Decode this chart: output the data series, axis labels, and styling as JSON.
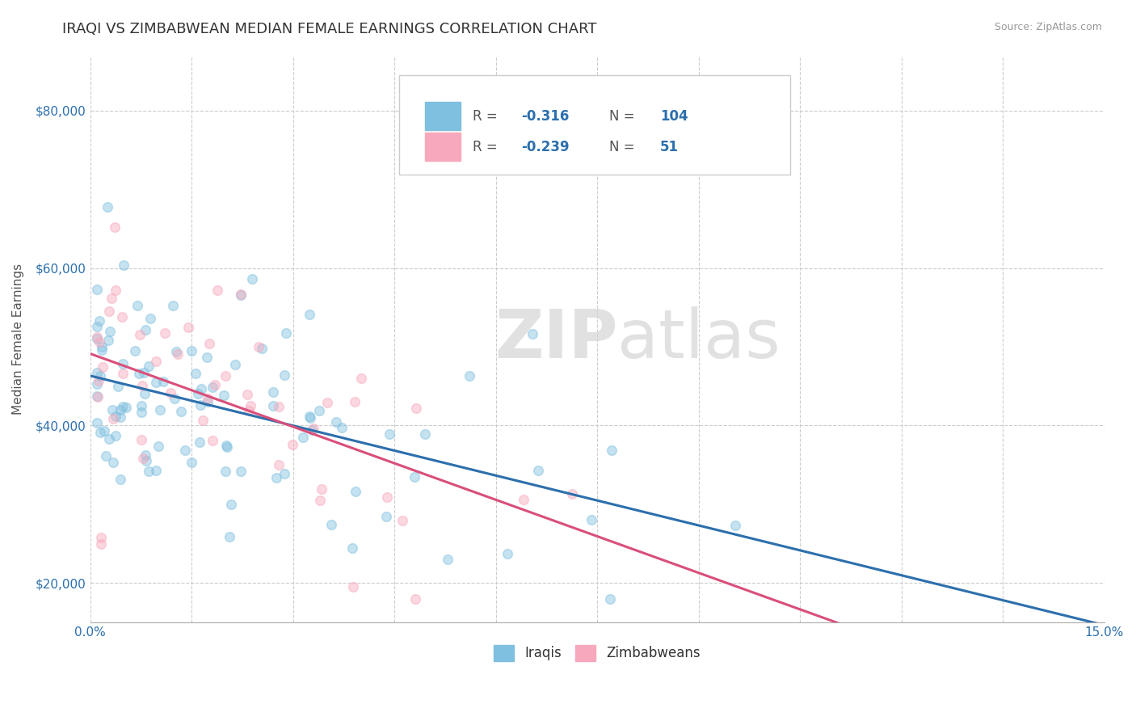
{
  "title": "IRAQI VS ZIMBABWEAN MEDIAN FEMALE EARNINGS CORRELATION CHART",
  "source_text": "Source: ZipAtlas.com",
  "ylabel": "Median Female Earnings",
  "xlim": [
    0.0,
    0.15
  ],
  "ylim": [
    15000,
    87000
  ],
  "ytick_positions": [
    20000,
    40000,
    60000,
    80000
  ],
  "ytick_labels": [
    "$20,000",
    "$40,000",
    "$60,000",
    "$80,000"
  ],
  "iraqi_color": "#7fbfdf",
  "iraqi_line_color": "#2c6fad",
  "zimbabwean_color": "#f7a8bc",
  "zimbabwean_line_color": "#d94f7a",
  "iraqi_R": -0.316,
  "iraqi_N": 104,
  "zimbabwean_R": -0.239,
  "zimbabwean_N": 51,
  "watermark_zip": "ZIP",
  "watermark_atlas": "atlas",
  "watermark_color": "#d8d8d8",
  "background_color": "#ffffff",
  "grid_color": "#cccccc",
  "title_fontsize": 13,
  "axis_label_fontsize": 11,
  "tick_fontsize": 11,
  "legend_box_color": "#f5f5f5",
  "legend_border_color": "#cccccc",
  "legend_text_color": "#555555",
  "legend_value_color": "#2c6fad",
  "dot_size": 70,
  "dot_alpha": 0.45,
  "dot_linewidth": 1.2
}
